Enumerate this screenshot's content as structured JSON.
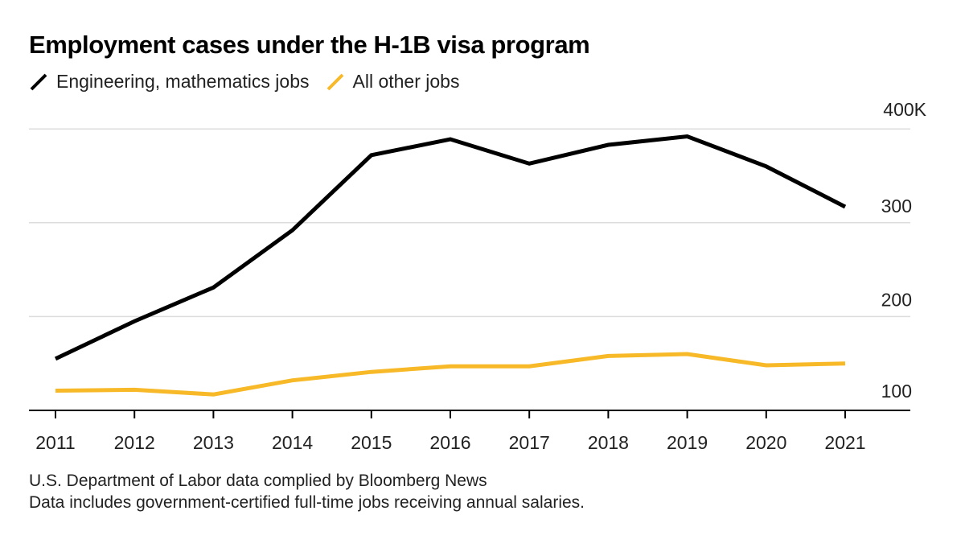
{
  "title": "Employment cases under the H-1B visa program",
  "legend": [
    {
      "label": "Engineering, mathematics jobs",
      "color": "#000000"
    },
    {
      "label": "All other jobs",
      "color": "#f7b927"
    }
  ],
  "footnotes": [
    "U.S. Department of Labor data complied by Bloomberg News",
    "Data includes government-certified full-time jobs receiving annual salaries."
  ],
  "chart_data": {
    "type": "line",
    "title": "Employment cases under the H-1B visa program",
    "x": [
      2011,
      2012,
      2013,
      2014,
      2015,
      2016,
      2017,
      2018,
      2019,
      2020,
      2021
    ],
    "x_tick_labels": [
      "2011",
      "2012",
      "2013",
      "2014",
      "2015",
      "2016",
      "2017",
      "2018",
      "2019",
      "2020",
      "2021"
    ],
    "series": [
      {
        "name": "Engineering, mathematics jobs",
        "color": "#000000",
        "values": [
          155,
          195,
          231,
          292,
          372,
          389,
          363,
          383,
          392,
          360,
          317
        ]
      },
      {
        "name": "All other jobs",
        "color": "#f7b927",
        "values": [
          121,
          122,
          117,
          132,
          141,
          147,
          147,
          158,
          160,
          148,
          150
        ]
      }
    ],
    "y_ticks": [
      100,
      200,
      300,
      400
    ],
    "y_tick_labels": [
      "100",
      "200",
      "300",
      "400K"
    ],
    "ylim": [
      80,
      400
    ],
    "y_axis_position": "right",
    "grid": true,
    "legend_position": "top-left"
  }
}
